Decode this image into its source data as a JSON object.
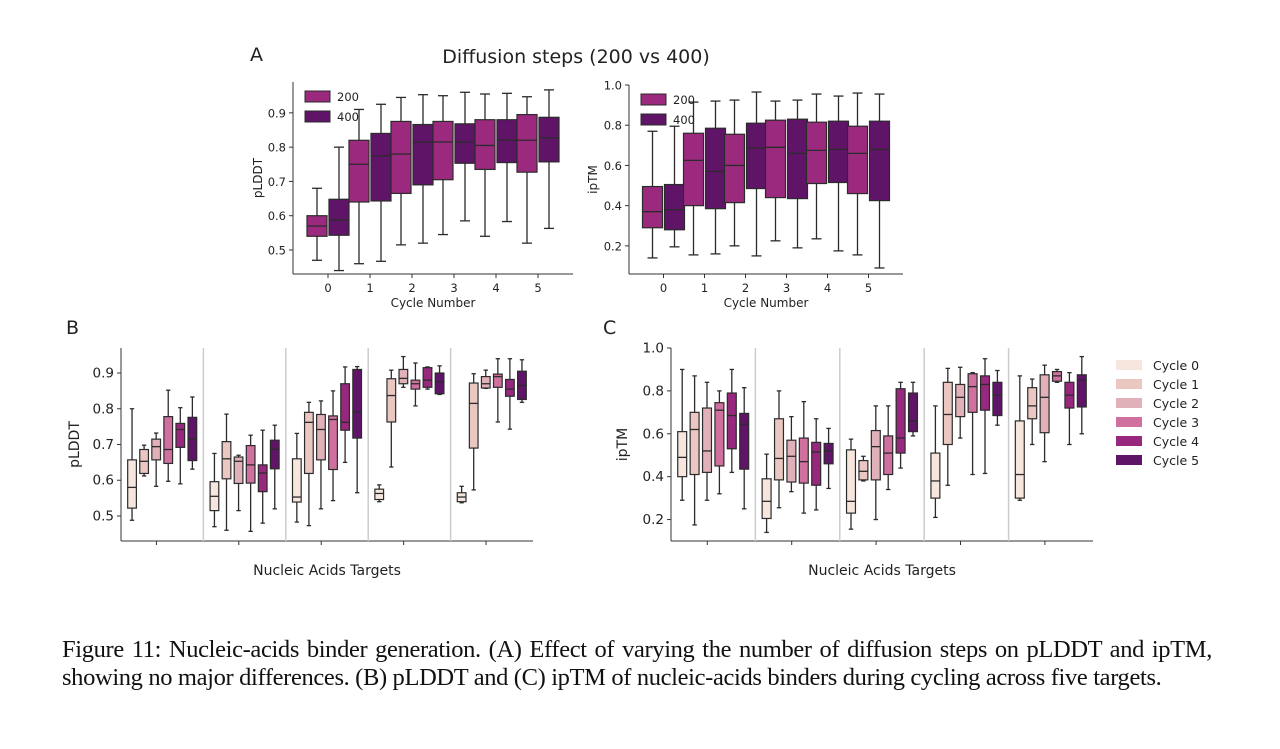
{
  "figure": {
    "caption": {
      "label": "Figure 11:",
      "text": "Nucleic-acids binder generation. (A) Effect of varying the number of diffusion steps on pLDDT and ipTM, showing no major differences. (B) pLDDT and (C) ipTM of nucleic-acids binders during cycling across five targets."
    },
    "panel_labels": {
      "a": "A",
      "b": "B",
      "c": "C"
    },
    "suptitle_a": "Diffusion steps (200 vs 400)"
  },
  "colors": {
    "steps_200": "#9b2a7f",
    "steps_400": "#601468",
    "cycle_0": "#f7e6de",
    "cycle_1": "#ebc7c2",
    "cycle_2": "#e0b1b8",
    "cycle_3": "#d0709f",
    "cycle_4": "#98277e",
    "cycle_5": "#5f1467",
    "separator": "#cccccc"
  },
  "chart_data": [
    {
      "id": "A-left",
      "type": "box",
      "title": "",
      "xlabel": "Cycle Number",
      "ylabel": "pLDDT",
      "ylim": [
        0.43,
        0.99
      ],
      "yticks": [
        0.5,
        0.6,
        0.7,
        0.8,
        0.9
      ],
      "categories": [
        "0",
        "1",
        "2",
        "3",
        "4",
        "5"
      ],
      "legend": {
        "position": "top-left",
        "entries": [
          "200",
          "400"
        ]
      },
      "series": [
        {
          "name": "200",
          "boxes": [
            {
              "whislo": 0.47,
              "q1": 0.54,
              "med": 0.57,
              "q3": 0.6,
              "whishi": 0.68
            },
            {
              "whislo": 0.46,
              "q1": 0.64,
              "med": 0.75,
              "q3": 0.82,
              "whishi": 0.91
            },
            {
              "whislo": 0.515,
              "q1": 0.665,
              "med": 0.78,
              "q3": 0.875,
              "whishi": 0.945
            },
            {
              "whislo": 0.545,
              "q1": 0.705,
              "med": 0.815,
              "q3": 0.875,
              "whishi": 0.95
            },
            {
              "whislo": 0.54,
              "q1": 0.735,
              "med": 0.805,
              "q3": 0.88,
              "whishi": 0.955
            },
            {
              "whislo": 0.52,
              "q1": 0.727,
              "med": 0.82,
              "q3": 0.895,
              "whishi": 0.947
            }
          ]
        },
        {
          "name": "400",
          "boxes": [
            {
              "whislo": 0.44,
              "q1": 0.543,
              "med": 0.588,
              "q3": 0.648,
              "whishi": 0.8
            },
            {
              "whislo": 0.467,
              "q1": 0.643,
              "med": 0.775,
              "q3": 0.84,
              "whishi": 0.925
            },
            {
              "whislo": 0.52,
              "q1": 0.69,
              "med": 0.815,
              "q3": 0.866,
              "whishi": 0.953
            },
            {
              "whislo": 0.585,
              "q1": 0.753,
              "med": 0.815,
              "q3": 0.868,
              "whishi": 0.96
            },
            {
              "whislo": 0.583,
              "q1": 0.755,
              "med": 0.82,
              "q3": 0.88,
              "whishi": 0.957
            },
            {
              "whislo": 0.563,
              "q1": 0.757,
              "med": 0.827,
              "q3": 0.887,
              "whishi": 0.967
            }
          ]
        }
      ]
    },
    {
      "id": "A-right",
      "type": "box",
      "title": "",
      "xlabel": "Cycle Number",
      "ylabel": "ipTM",
      "ylim": [
        0.06,
        1.0
      ],
      "yticks": [
        0.2,
        0.4,
        0.6,
        0.8,
        1.0
      ],
      "categories": [
        "0",
        "1",
        "2",
        "3",
        "4",
        "5"
      ],
      "legend": {
        "position": "top-left",
        "entries": [
          "200",
          "400"
        ]
      },
      "series": [
        {
          "name": "200",
          "boxes": [
            {
              "whislo": 0.14,
              "q1": 0.29,
              "med": 0.37,
              "q3": 0.495,
              "whishi": 0.77
            },
            {
              "whislo": 0.155,
              "q1": 0.4,
              "med": 0.625,
              "q3": 0.76,
              "whishi": 0.915
            },
            {
              "whislo": 0.2,
              "q1": 0.415,
              "med": 0.6,
              "q3": 0.755,
              "whishi": 0.925
            },
            {
              "whislo": 0.225,
              "q1": 0.44,
              "med": 0.69,
              "q3": 0.825,
              "whishi": 0.92
            },
            {
              "whislo": 0.235,
              "q1": 0.51,
              "med": 0.675,
              "q3": 0.815,
              "whishi": 0.955
            },
            {
              "whislo": 0.155,
              "q1": 0.46,
              "med": 0.66,
              "q3": 0.795,
              "whishi": 0.96
            }
          ]
        },
        {
          "name": "400",
          "boxes": [
            {
              "whislo": 0.195,
              "q1": 0.28,
              "med": 0.38,
              "q3": 0.505,
              "whishi": 0.795
            },
            {
              "whislo": 0.16,
              "q1": 0.385,
              "med": 0.57,
              "q3": 0.785,
              "whishi": 0.92
            },
            {
              "whislo": 0.15,
              "q1": 0.485,
              "med": 0.685,
              "q3": 0.81,
              "whishi": 0.965
            },
            {
              "whislo": 0.19,
              "q1": 0.435,
              "med": 0.66,
              "q3": 0.83,
              "whishi": 0.925
            },
            {
              "whislo": 0.175,
              "q1": 0.515,
              "med": 0.68,
              "q3": 0.82,
              "whishi": 0.945
            },
            {
              "whislo": 0.09,
              "q1": 0.425,
              "med": 0.68,
              "q3": 0.82,
              "whishi": 0.955
            }
          ]
        }
      ]
    },
    {
      "id": "B",
      "type": "box",
      "title": "",
      "xlabel": "Nucleic Acids Targets",
      "ylabel": "pLDDT",
      "ylim": [
        0.43,
        0.97
      ],
      "yticks": [
        0.5,
        0.6,
        0.7,
        0.8,
        0.9
      ],
      "groups": 5,
      "series_names": [
        "Cycle 0",
        "Cycle 1",
        "Cycle 2",
        "Cycle 3",
        "Cycle 4",
        "Cycle 5"
      ],
      "targets": [
        [
          {
            "whislo": 0.488,
            "q1": 0.522,
            "med": 0.58,
            "q3": 0.657,
            "whishi": 0.8
          },
          {
            "whislo": 0.612,
            "q1": 0.619,
            "med": 0.653,
            "q3": 0.686,
            "whishi": 0.698
          },
          {
            "whislo": 0.583,
            "q1": 0.657,
            "med": 0.694,
            "q3": 0.715,
            "whishi": 0.732
          },
          {
            "whislo": 0.597,
            "q1": 0.647,
            "med": 0.686,
            "q3": 0.778,
            "whishi": 0.852
          },
          {
            "whislo": 0.59,
            "q1": 0.692,
            "med": 0.742,
            "q3": 0.759,
            "whishi": 0.803
          },
          {
            "whislo": 0.631,
            "q1": 0.655,
            "med": 0.715,
            "q3": 0.776,
            "whishi": 0.833
          }
        ],
        [
          {
            "whislo": 0.47,
            "q1": 0.515,
            "med": 0.555,
            "q3": 0.596,
            "whishi": 0.675
          },
          {
            "whislo": 0.46,
            "q1": 0.604,
            "med": 0.66,
            "q3": 0.708,
            "whishi": 0.785
          },
          {
            "whislo": 0.515,
            "q1": 0.591,
            "med": 0.653,
            "q3": 0.665,
            "whishi": 0.67
          },
          {
            "whislo": 0.457,
            "q1": 0.592,
            "med": 0.643,
            "q3": 0.697,
            "whishi": 0.726
          },
          {
            "whislo": 0.48,
            "q1": 0.568,
            "med": 0.62,
            "q3": 0.643,
            "whishi": 0.74
          },
          {
            "whislo": 0.52,
            "q1": 0.632,
            "med": 0.687,
            "q3": 0.712,
            "whishi": 0.754
          }
        ],
        [
          {
            "whislo": 0.483,
            "q1": 0.539,
            "med": 0.553,
            "q3": 0.66,
            "whishi": 0.731
          },
          {
            "whislo": 0.473,
            "q1": 0.619,
            "med": 0.762,
            "q3": 0.79,
            "whishi": 0.818
          },
          {
            "whislo": 0.52,
            "q1": 0.657,
            "med": 0.742,
            "q3": 0.784,
            "whishi": 0.822
          },
          {
            "whislo": 0.543,
            "q1": 0.63,
            "med": 0.77,
            "q3": 0.78,
            "whishi": 0.85
          },
          {
            "whislo": 0.65,
            "q1": 0.74,
            "med": 0.762,
            "q3": 0.87,
            "whishi": 0.917
          },
          {
            "whislo": 0.565,
            "q1": 0.718,
            "med": 0.79,
            "q3": 0.91,
            "whishi": 0.918
          }
        ],
        [
          {
            "whislo": 0.54,
            "q1": 0.546,
            "med": 0.563,
            "q3": 0.575,
            "whishi": 0.587
          },
          {
            "whislo": 0.637,
            "q1": 0.763,
            "med": 0.837,
            "q3": 0.884,
            "whishi": 0.908
          },
          {
            "whislo": 0.86,
            "q1": 0.87,
            "med": 0.885,
            "q3": 0.91,
            "whishi": 0.946
          },
          {
            "whislo": 0.808,
            "q1": 0.855,
            "med": 0.87,
            "q3": 0.88,
            "whishi": 0.928
          },
          {
            "whislo": 0.855,
            "q1": 0.86,
            "med": 0.88,
            "q3": 0.915,
            "whishi": 0.917
          },
          {
            "whislo": 0.84,
            "q1": 0.842,
            "med": 0.875,
            "q3": 0.9,
            "whishi": 0.92
          }
        ],
        [
          {
            "whislo": 0.537,
            "q1": 0.54,
            "med": 0.553,
            "q3": 0.565,
            "whishi": 0.583
          },
          {
            "whislo": 0.573,
            "q1": 0.69,
            "med": 0.815,
            "q3": 0.872,
            "whishi": 0.898
          },
          {
            "whislo": 0.857,
            "q1": 0.858,
            "med": 0.87,
            "q3": 0.89,
            "whishi": 0.908
          },
          {
            "whislo": 0.763,
            "q1": 0.86,
            "med": 0.89,
            "q3": 0.897,
            "whishi": 0.94
          },
          {
            "whislo": 0.743,
            "q1": 0.835,
            "med": 0.855,
            "q3": 0.882,
            "whishi": 0.94
          },
          {
            "whislo": 0.818,
            "q1": 0.826,
            "med": 0.865,
            "q3": 0.905,
            "whishi": 0.937
          }
        ]
      ]
    },
    {
      "id": "C",
      "type": "box",
      "title": "",
      "xlabel": "Nucleic Acids Targets",
      "ylabel": "ipTM",
      "ylim": [
        0.1,
        1.0
      ],
      "yticks": [
        0.2,
        0.4,
        0.6,
        0.8,
        1.0
      ],
      "groups": 5,
      "series_names": [
        "Cycle 0",
        "Cycle 1",
        "Cycle 2",
        "Cycle 3",
        "Cycle 4",
        "Cycle 5"
      ],
      "legend": {
        "position": "right",
        "entries": [
          "Cycle 0",
          "Cycle 1",
          "Cycle 2",
          "Cycle 3",
          "Cycle 4",
          "Cycle 5"
        ]
      },
      "targets": [
        [
          {
            "whislo": 0.29,
            "q1": 0.4,
            "med": 0.49,
            "q3": 0.61,
            "whishi": 0.9
          },
          {
            "whislo": 0.175,
            "q1": 0.41,
            "med": 0.62,
            "q3": 0.7,
            "whishi": 0.87
          },
          {
            "whislo": 0.29,
            "q1": 0.42,
            "med": 0.52,
            "q3": 0.72,
            "whishi": 0.84
          },
          {
            "whislo": 0.32,
            "q1": 0.45,
            "med": 0.71,
            "q3": 0.745,
            "whishi": 0.8
          },
          {
            "whislo": 0.42,
            "q1": 0.53,
            "med": 0.685,
            "q3": 0.79,
            "whishi": 0.9
          },
          {
            "whislo": 0.25,
            "q1": 0.435,
            "med": 0.645,
            "q3": 0.695,
            "whishi": 0.815
          }
        ],
        [
          {
            "whislo": 0.14,
            "q1": 0.205,
            "med": 0.285,
            "q3": 0.39,
            "whishi": 0.505
          },
          {
            "whislo": 0.255,
            "q1": 0.385,
            "med": 0.485,
            "q3": 0.67,
            "whishi": 0.8
          },
          {
            "whislo": 0.33,
            "q1": 0.375,
            "med": 0.495,
            "q3": 0.57,
            "whishi": 0.68
          },
          {
            "whislo": 0.23,
            "q1": 0.37,
            "med": 0.47,
            "q3": 0.58,
            "whishi": 0.75
          },
          {
            "whislo": 0.245,
            "q1": 0.36,
            "med": 0.515,
            "q3": 0.56,
            "whishi": 0.67
          },
          {
            "whislo": 0.345,
            "q1": 0.46,
            "med": 0.52,
            "q3": 0.555,
            "whishi": 0.625
          }
        ],
        [
          {
            "whislo": 0.155,
            "q1": 0.23,
            "med": 0.285,
            "q3": 0.525,
            "whishi": 0.575
          },
          {
            "whislo": 0.38,
            "q1": 0.385,
            "med": 0.425,
            "q3": 0.475,
            "whishi": 0.495
          },
          {
            "whislo": 0.2,
            "q1": 0.385,
            "med": 0.54,
            "q3": 0.615,
            "whishi": 0.73
          },
          {
            "whislo": 0.34,
            "q1": 0.41,
            "med": 0.51,
            "q3": 0.59,
            "whishi": 0.73
          },
          {
            "whislo": 0.44,
            "q1": 0.51,
            "med": 0.58,
            "q3": 0.81,
            "whishi": 0.84
          },
          {
            "whislo": 0.59,
            "q1": 0.61,
            "med": 0.66,
            "q3": 0.79,
            "whishi": 0.84
          }
        ],
        [
          {
            "whislo": 0.21,
            "q1": 0.3,
            "med": 0.38,
            "q3": 0.51,
            "whishi": 0.73
          },
          {
            "whislo": 0.36,
            "q1": 0.55,
            "med": 0.69,
            "q3": 0.84,
            "whishi": 0.905
          },
          {
            "whislo": 0.58,
            "q1": 0.68,
            "med": 0.77,
            "q3": 0.83,
            "whishi": 0.91
          },
          {
            "whislo": 0.41,
            "q1": 0.7,
            "med": 0.82,
            "q3": 0.88,
            "whishi": 0.885
          },
          {
            "whislo": 0.415,
            "q1": 0.71,
            "med": 0.83,
            "q3": 0.87,
            "whishi": 0.95
          },
          {
            "whislo": 0.64,
            "q1": 0.685,
            "med": 0.78,
            "q3": 0.84,
            "whishi": 0.895
          }
        ],
        [
          {
            "whislo": 0.29,
            "q1": 0.3,
            "med": 0.41,
            "q3": 0.66,
            "whishi": 0.87
          },
          {
            "whislo": 0.55,
            "q1": 0.67,
            "med": 0.73,
            "q3": 0.815,
            "whishi": 0.855
          },
          {
            "whislo": 0.47,
            "q1": 0.605,
            "med": 0.77,
            "q3": 0.875,
            "whishi": 0.92
          },
          {
            "whislo": 0.84,
            "q1": 0.845,
            "med": 0.87,
            "q3": 0.89,
            "whishi": 0.9
          },
          {
            "whislo": 0.55,
            "q1": 0.72,
            "med": 0.78,
            "q3": 0.84,
            "whishi": 0.885
          },
          {
            "whislo": 0.6,
            "q1": 0.725,
            "med": 0.85,
            "q3": 0.875,
            "whishi": 0.96
          }
        ]
      ]
    }
  ]
}
